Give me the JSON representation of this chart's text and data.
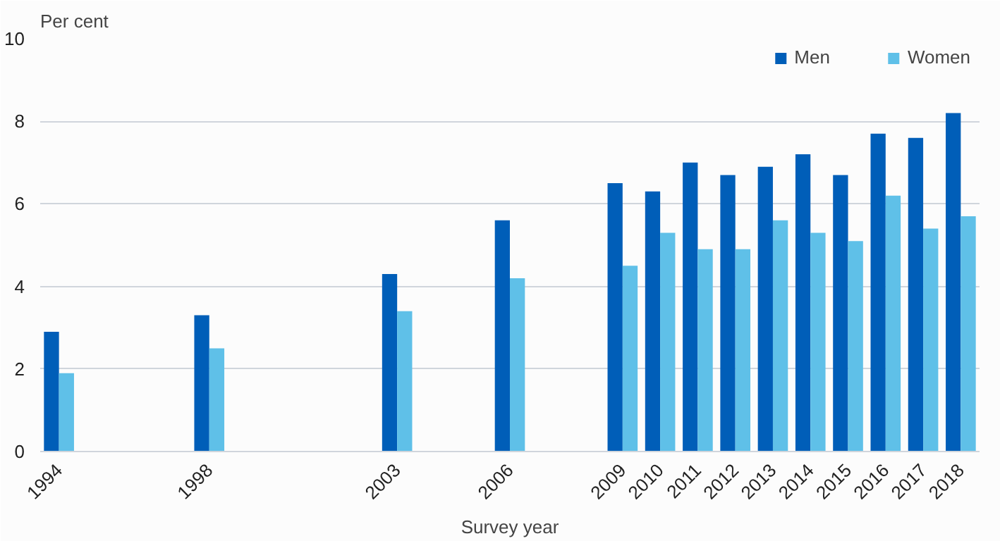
{
  "chart_data": {
    "type": "bar",
    "ylabel": "Per cent",
    "xlabel": "Survey year",
    "x": [
      1994,
      1998,
      2003,
      2006,
      2009,
      2010,
      2011,
      2012,
      2013,
      2014,
      2015,
      2016,
      2017,
      2018
    ],
    "series": [
      {
        "name": "Men",
        "color": "#005eb8",
        "values": [
          2.9,
          3.3,
          4.3,
          5.6,
          6.5,
          6.3,
          7.0,
          6.7,
          6.9,
          7.2,
          6.7,
          7.7,
          7.6,
          8.2
        ]
      },
      {
        "name": "Women",
        "color": "#5fc0e8",
        "values": [
          1.9,
          2.5,
          3.4,
          4.2,
          4.5,
          5.3,
          4.9,
          4.9,
          5.6,
          5.3,
          5.1,
          6.2,
          5.4,
          5.7
        ]
      }
    ],
    "xlim": [
      1993.5,
      2018.5
    ],
    "xticks": [
      1994,
      1998,
      2003,
      2006,
      2009,
      2010,
      2011,
      2012,
      2013,
      2014,
      2015,
      2016,
      2017,
      2018
    ],
    "ylim": [
      0,
      10
    ],
    "yticks": [
      0,
      2,
      4,
      6,
      8,
      10
    ],
    "grid": "y",
    "legend": "top right"
  }
}
